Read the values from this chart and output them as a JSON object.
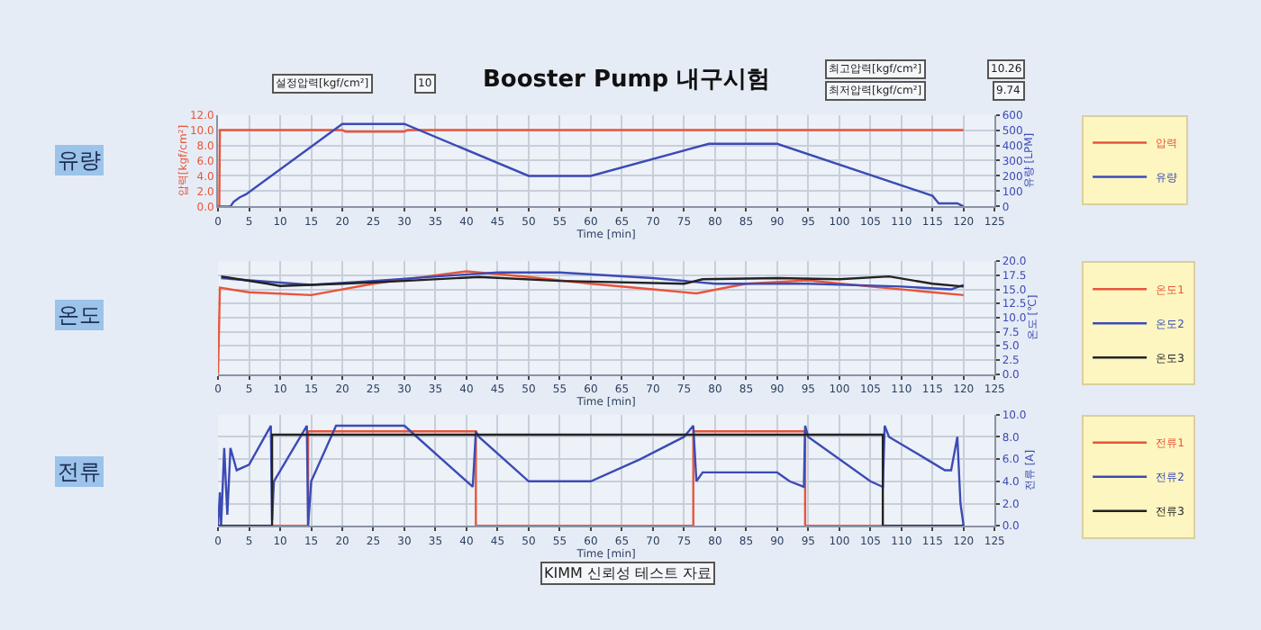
{
  "chart_data": [
    {
      "type": "line",
      "title": "Booster Pump 내구시험",
      "xlabel": "Time [min]",
      "ylabel": "압력[kgf/cm²]",
      "y2label": "유량 [LPM]",
      "annotations": [
        "설정압력[kgf/cm²]",
        "10",
        "최고압력[kgf/cm²]",
        "10.26",
        "최저압력[kgf/cm²]",
        "9.74",
        "유량"
      ],
      "xlim": [
        0,
        125
      ],
      "xticks": [
        0,
        5,
        10,
        15,
        20,
        25,
        30,
        35,
        40,
        45,
        50,
        55,
        60,
        65,
        70,
        75,
        80,
        85,
        90,
        95,
        100,
        105,
        110,
        115,
        120,
        125
      ],
      "ylim": [
        0,
        12
      ],
      "yticks": [
        {
          "value": 0,
          "label": "0.0"
        },
        {
          "value": 2,
          "label": "2.0"
        },
        {
          "value": 4,
          "label": "4.0"
        },
        {
          "value": 6,
          "label": "6.0"
        },
        {
          "value": 8,
          "label": "8.0"
        },
        {
          "value": 10,
          "label": "10.0"
        },
        {
          "value": 12,
          "label": "12.0"
        }
      ],
      "y2lim": [
        0,
        600
      ],
      "y2ticks": [
        0,
        100,
        200,
        300,
        400,
        500,
        600
      ],
      "grid": true,
      "legend": "right",
      "series": [
        {
          "name": "압력",
          "color": "#e8553a",
          "x": [
            0,
            0.2,
            0.3,
            20,
            20.5,
            30,
            30.5,
            120
          ],
          "values": [
            0,
            0,
            10,
            10,
            9.8,
            9.8,
            10,
            10
          ]
        },
        {
          "name": "유량",
          "color": "#3b4bb5",
          "axis": "y2",
          "x": [
            0,
            2,
            2.5,
            3.5,
            4.5,
            20,
            30,
            50,
            60,
            79,
            90,
            115,
            116,
            119,
            120
          ],
          "values": [
            0,
            0,
            30,
            60,
            80,
            540,
            540,
            200,
            200,
            410,
            410,
            70,
            20,
            20,
            0
          ]
        }
      ]
    },
    {
      "type": "line",
      "xlabel": "Time [min]",
      "y2label": "온도 [℃]",
      "annotations": [
        "온도"
      ],
      "xlim": [
        0,
        125
      ],
      "xticks": [
        0,
        5,
        10,
        15,
        20,
        25,
        30,
        35,
        40,
        45,
        50,
        55,
        60,
        65,
        70,
        75,
        80,
        85,
        90,
        95,
        100,
        105,
        110,
        115,
        120,
        125
      ],
      "y2lim": [
        0,
        20
      ],
      "y2ticks": [
        {
          "value": 0,
          "label": "0.0"
        },
        {
          "value": 2.5,
          "label": "2.5"
        },
        {
          "value": 5,
          "label": "5.0"
        },
        {
          "value": 7.5,
          "label": "7.5"
        },
        {
          "value": 10,
          "label": "10.0"
        },
        {
          "value": 12.5,
          "label": "12.5"
        },
        {
          "value": 15,
          "label": "15.0"
        },
        {
          "value": 17.5,
          "label": "17.5"
        },
        {
          "value": 20,
          "label": "20.0"
        }
      ],
      "grid": true,
      "legend": "right",
      "series": [
        {
          "name": "온도1",
          "color": "#e8553a",
          "axis": "y2",
          "x": [
            0,
            0.3,
            5,
            15,
            25,
            35,
            40,
            50,
            60,
            70,
            77,
            85,
            95,
            105,
            115,
            120
          ],
          "values": [
            0,
            15.3,
            14.5,
            14,
            16,
            17.5,
            18.2,
            17.2,
            16,
            15,
            14.3,
            16,
            16.6,
            15.5,
            14.5,
            14
          ]
        },
        {
          "name": "온도2",
          "color": "#3b4bb5",
          "axis": "y2",
          "x": [
            0.5,
            10,
            15,
            25,
            38,
            45,
            55,
            70,
            80,
            95,
            110,
            118,
            120
          ],
          "values": [
            17,
            16.2,
            15.8,
            16.5,
            17.5,
            18,
            18,
            17,
            16,
            16,
            15.5,
            15,
            15.8
          ]
        },
        {
          "name": "온도3",
          "color": "#222222",
          "axis": "y2",
          "x": [
            0.5,
            8,
            10,
            20,
            30,
            42,
            55,
            75,
            78,
            90,
            100,
            108,
            115,
            120
          ],
          "values": [
            17.3,
            16,
            15.6,
            16,
            16.5,
            17.2,
            16.5,
            16,
            16.8,
            17,
            16.8,
            17.3,
            16,
            15.5
          ]
        }
      ]
    },
    {
      "type": "line",
      "xlabel": "Time [min]",
      "y2label": "전류 [A]",
      "annotations": [
        "전류",
        "KIMM 신뢰성 테스트 자료"
      ],
      "xlim": [
        0,
        125
      ],
      "xticks": [
        0,
        5,
        10,
        15,
        20,
        25,
        30,
        35,
        40,
        45,
        50,
        55,
        60,
        65,
        70,
        75,
        80,
        85,
        90,
        95,
        100,
        105,
        110,
        115,
        120,
        125
      ],
      "y2lim": [
        0,
        10
      ],
      "y2ticks": [
        {
          "value": 0,
          "label": "0.0"
        },
        {
          "value": 2,
          "label": "2.0"
        },
        {
          "value": 4,
          "label": "4.0"
        },
        {
          "value": 6,
          "label": "6.0"
        },
        {
          "value": 8,
          "label": "8.0"
        },
        {
          "value": 10,
          "label": "10.0"
        }
      ],
      "grid": true,
      "legend": "right",
      "series": [
        {
          "name": "전류1",
          "color": "#e8553a",
          "axis": "y2",
          "x": [
            0,
            14.5,
            14.5,
            41.5,
            41.5,
            76.5,
            76.5,
            94.5,
            94.5,
            119.5
          ],
          "values": [
            0,
            0,
            8.5,
            8.5,
            0,
            0,
            8.5,
            8.5,
            0,
            0
          ]
        },
        {
          "name": "전류2",
          "color": "#3b4bb5",
          "axis": "y2",
          "x": [
            0,
            0.3,
            0.5,
            1,
            1.5,
            2,
            3,
            5,
            8.5,
            8.7,
            9,
            14.3,
            14.5,
            15,
            19,
            30,
            31,
            41,
            41.5,
            42,
            50,
            60,
            68,
            75,
            76.5,
            77,
            78,
            90,
            92,
            94.3,
            94.5,
            95,
            105,
            107,
            107.3,
            108,
            114,
            117,
            118,
            119,
            119.5,
            120
          ],
          "values": [
            0,
            3,
            0,
            7,
            1,
            7,
            5,
            5.5,
            9,
            0.5,
            4,
            9,
            0,
            4,
            9,
            9,
            8.5,
            3.5,
            8.5,
            8,
            4,
            4,
            6,
            8,
            9,
            4,
            4.8,
            4.8,
            4,
            3.5,
            9,
            8,
            4,
            3.5,
            9,
            8,
            6,
            5,
            5,
            8,
            2,
            0
          ]
        },
        {
          "name": "전류3",
          "color": "#222222",
          "axis": "y2",
          "x": [
            0,
            8.7,
            8.7,
            107,
            107,
            120
          ],
          "values": [
            0,
            0,
            8.2,
            8.2,
            0,
            0
          ]
        }
      ]
    }
  ]
}
